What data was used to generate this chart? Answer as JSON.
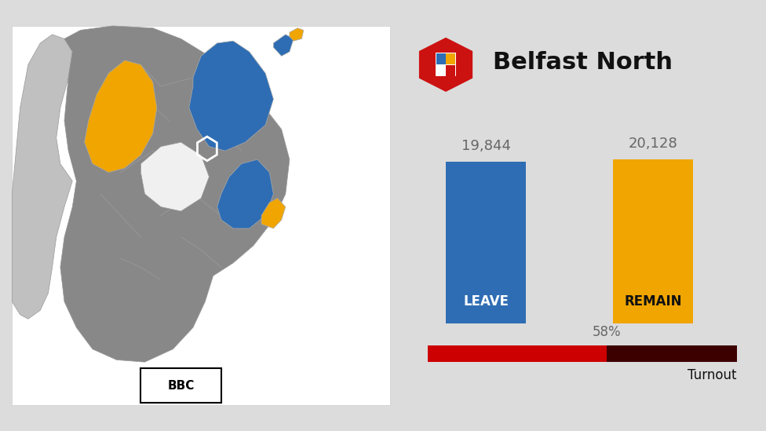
{
  "title": "Belfast North",
  "leave_value": 19844,
  "remain_value": 20128,
  "leave_label": "19,844",
  "remain_label": "20,128",
  "leave_color": "#2E6DB4",
  "remain_color": "#F0A500",
  "leave_text": "LEAVE",
  "remain_text": "REMAIN",
  "turnout_pct": 58,
  "turnout_label": "58%",
  "turnout_text": "Turnout",
  "turnout_filled_color": "#CC0000",
  "turnout_empty_color": "#3D0000",
  "bg_color": "#DCDCDC",
  "bar_label_color": "#666666",
  "title_color": "#111111",
  "map_ni_color": "#888888",
  "map_ni_edge": "#999999",
  "map_roi_color": "#C0C0C0",
  "map_white_area": "#FFFFFF",
  "map_panel_bg": "#FFFFFF",
  "map_border_color": "#CCCCCC",
  "icon_red": "#CC1111",
  "icon_blue": "#2E6DB4",
  "icon_yellow": "#F0A500",
  "icon_white": "#FFFFFF"
}
